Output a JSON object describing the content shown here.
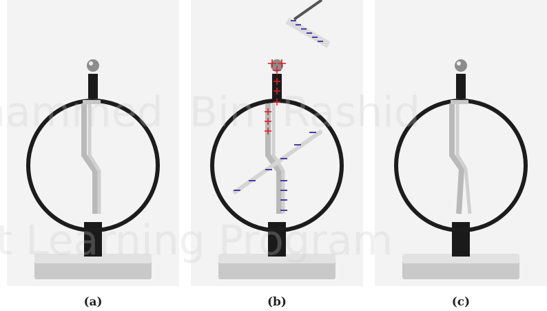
{
  "panels": [
    {
      "id": "a",
      "caption": "(a)",
      "variant": "neutral"
    },
    {
      "id": "b",
      "caption": "(b)",
      "variant": "charging"
    },
    {
      "id": "c",
      "caption": "(c)",
      "variant": "diverged"
    }
  ],
  "watermark": {
    "line1": "hammed  Bin  Rashid",
    "line2": "rt Learning Program"
  },
  "colors": {
    "background": "#f3f3f3",
    "ring": "#1c1c1c",
    "base": "#d9d9d9",
    "leaf": "#b9b9b9",
    "positive_charge": "#e0202a",
    "negative_charge": "#4a3aa8"
  }
}
